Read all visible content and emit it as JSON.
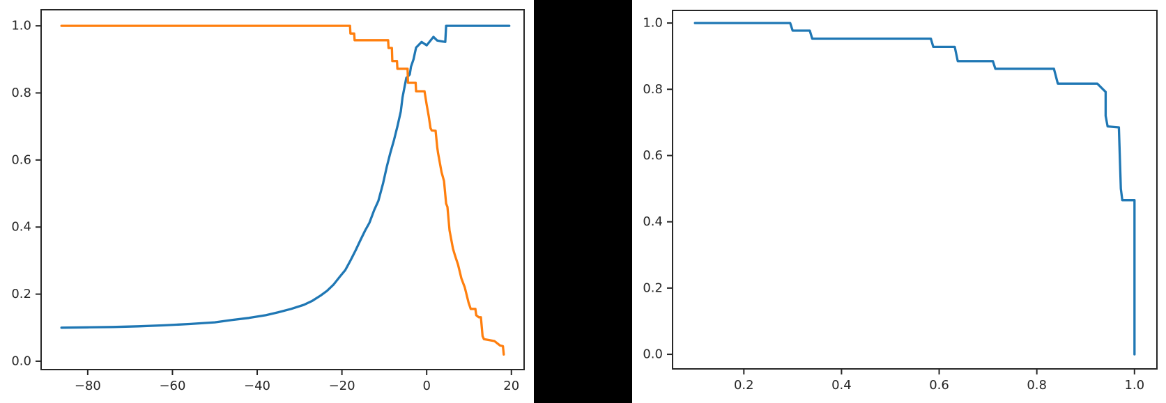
{
  "figure": {
    "background_color": "#000000",
    "panel_background_color": "#ffffff"
  },
  "styles": {
    "axis_color": "#262626",
    "tick_label_color": "#262626",
    "blue": "#1f77b4",
    "orange": "#ff7f0e",
    "line_width": 3.3,
    "spine_width": 2,
    "tick_length": 8
  },
  "chart_data": [
    {
      "type": "line",
      "title": "",
      "xlabel": "",
      "ylabel": "",
      "grid": false,
      "legend": null,
      "xlim": [
        -91.0,
        23.0
      ],
      "ylim": [
        -0.025,
        1.048
      ],
      "xticks": {
        "values": [
          -80,
          -60,
          -40,
          -20,
          0,
          20
        ],
        "labels": [
          "−80",
          "−60",
          "−40",
          "−20",
          "0",
          "20"
        ]
      },
      "yticks": {
        "values": [
          0.0,
          0.2,
          0.4,
          0.6,
          0.8,
          1.0
        ],
        "labels": [
          "0.0",
          "0.2",
          "0.4",
          "0.6",
          "0.8",
          "1.0"
        ]
      },
      "series": [
        {
          "name": "left-blue-line",
          "color": "#1f77b4",
          "points": [
            [
              -86.2,
              0.1
            ],
            [
              -80,
              0.101
            ],
            [
              -74,
              0.102
            ],
            [
              -68,
              0.104
            ],
            [
              -62,
              0.107
            ],
            [
              -56,
              0.111
            ],
            [
              -50,
              0.116
            ],
            [
              -46,
              0.123
            ],
            [
              -42,
              0.129
            ],
            [
              -38,
              0.137
            ],
            [
              -35,
              0.146
            ],
            [
              -32,
              0.156
            ],
            [
              -29,
              0.168
            ],
            [
              -27,
              0.18
            ],
            [
              -25,
              0.196
            ],
            [
              -23.5,
              0.21
            ],
            [
              -22,
              0.228
            ],
            [
              -20.5,
              0.252
            ],
            [
              -19.2,
              0.272
            ],
            [
              -18,
              0.3
            ],
            [
              -16.8,
              0.33
            ],
            [
              -15.6,
              0.362
            ],
            [
              -14.5,
              0.39
            ],
            [
              -13.5,
              0.413
            ],
            [
              -12.4,
              0.45
            ],
            [
              -11.4,
              0.478
            ],
            [
              -10.3,
              0.53
            ],
            [
              -9.4,
              0.58
            ],
            [
              -8.6,
              0.62
            ],
            [
              -7.7,
              0.66
            ],
            [
              -6.9,
              0.7
            ],
            [
              -6.1,
              0.745
            ],
            [
              -5.7,
              0.786
            ],
            [
              -5.3,
              0.813
            ],
            [
              -4.8,
              0.845
            ],
            [
              -4.5,
              0.848
            ],
            [
              -4.0,
              0.855
            ],
            [
              -3.7,
              0.878
            ],
            [
              -3.1,
              0.9
            ],
            [
              -2.5,
              0.935
            ],
            [
              -1.2,
              0.952
            ],
            [
              0.0,
              0.942
            ],
            [
              1.6,
              0.967
            ],
            [
              2.5,
              0.956
            ],
            [
              4.4,
              0.952
            ],
            [
              4.6,
              1.0
            ],
            [
              19.5,
              1.0
            ]
          ]
        },
        {
          "name": "left-orange-line",
          "color": "#ff7f0e",
          "points": [
            [
              -86.2,
              1.0
            ],
            [
              -18.1,
              1.0
            ],
            [
              -18.0,
              0.977
            ],
            [
              -17.1,
              0.977
            ],
            [
              -17.0,
              0.957
            ],
            [
              -9.1,
              0.957
            ],
            [
              -9.0,
              0.934
            ],
            [
              -8.2,
              0.934
            ],
            [
              -8.1,
              0.895
            ],
            [
              -7.0,
              0.895
            ],
            [
              -6.9,
              0.872
            ],
            [
              -4.5,
              0.872
            ],
            [
              -4.4,
              0.83
            ],
            [
              -2.6,
              0.83
            ],
            [
              -2.5,
              0.805
            ],
            [
              -0.5,
              0.805
            ],
            [
              0.0,
              0.765
            ],
            [
              0.5,
              0.73
            ],
            [
              0.9,
              0.695
            ],
            [
              1.2,
              0.688
            ],
            [
              2.1,
              0.687
            ],
            [
              2.5,
              0.637
            ],
            [
              2.7,
              0.62
            ],
            [
              3.5,
              0.564
            ],
            [
              4.1,
              0.537
            ],
            [
              4.6,
              0.47
            ],
            [
              4.9,
              0.46
            ],
            [
              5.4,
              0.39
            ],
            [
              6.2,
              0.336
            ],
            [
              6.7,
              0.315
            ],
            [
              7.4,
              0.288
            ],
            [
              8.2,
              0.247
            ],
            [
              9.0,
              0.22
            ],
            [
              9.9,
              0.174
            ],
            [
              10.4,
              0.156
            ],
            [
              11.5,
              0.156
            ],
            [
              11.7,
              0.137
            ],
            [
              12.3,
              0.131
            ],
            [
              12.8,
              0.131
            ],
            [
              13.2,
              0.075
            ],
            [
              13.5,
              0.066
            ],
            [
              16.0,
              0.06
            ],
            [
              17.3,
              0.047
            ],
            [
              18.0,
              0.045
            ],
            [
              18.2,
              0.02
            ]
          ]
        }
      ]
    },
    {
      "type": "line",
      "title": "",
      "xlabel": "",
      "ylabel": "",
      "grid": false,
      "legend": null,
      "xlim": [
        0.054,
        1.046
      ],
      "ylim": [
        -0.044,
        1.038
      ],
      "xticks": {
        "values": [
          0.2,
          0.4,
          0.6,
          0.8,
          1.0
        ],
        "labels": [
          "0.2",
          "0.4",
          "0.6",
          "0.8",
          "1.0"
        ]
      },
      "yticks": {
        "values": [
          0.0,
          0.2,
          0.4,
          0.6,
          0.8,
          1.0
        ],
        "labels": [
          "0.0",
          "0.2",
          "0.4",
          "0.6",
          "0.8",
          "1.0"
        ]
      },
      "series": [
        {
          "name": "right-blue-line",
          "color": "#1f77b4",
          "points": [
            [
              0.1,
              1.0
            ],
            [
              0.295,
              1.0
            ],
            [
              0.3,
              0.977
            ],
            [
              0.335,
              0.977
            ],
            [
              0.34,
              0.953
            ],
            [
              0.583,
              0.953
            ],
            [
              0.588,
              0.928
            ],
            [
              0.632,
              0.928
            ],
            [
              0.638,
              0.885
            ],
            [
              0.71,
              0.885
            ],
            [
              0.715,
              0.862
            ],
            [
              0.835,
              0.862
            ],
            [
              0.843,
              0.817
            ],
            [
              0.924,
              0.817
            ],
            [
              0.941,
              0.792
            ],
            [
              0.941,
              0.72
            ],
            [
              0.945,
              0.688
            ],
            [
              0.968,
              0.685
            ],
            [
              0.972,
              0.5
            ],
            [
              0.975,
              0.465
            ],
            [
              1.0,
              0.465
            ],
            [
              1.0,
              0.0
            ]
          ]
        }
      ]
    }
  ]
}
